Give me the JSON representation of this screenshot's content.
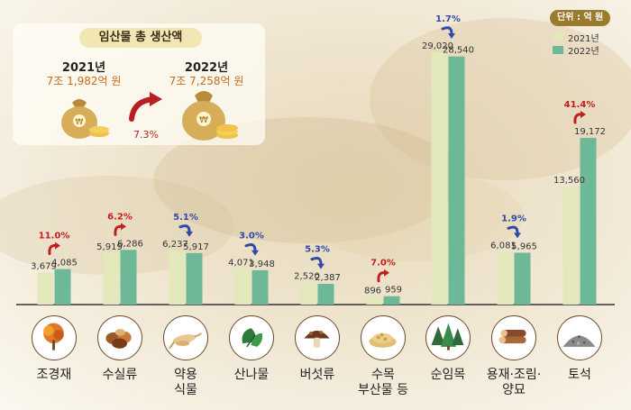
{
  "summary": {
    "title": "임산물 총 생산액",
    "year2021": "2021년",
    "amount2021": "7조 1,982억 원",
    "year2022": "2022년",
    "amount2022": "7조 7,258억 원",
    "growth": "7.3%"
  },
  "unit_label": "단위 : 억 원",
  "colors": {
    "series2021": "#e3e8bb",
    "series2022": "#6cb897",
    "increase": "#c02020",
    "decrease": "#2f4aa8"
  },
  "chart_data": {
    "type": "bar",
    "categories": [
      "조경재",
      "수실류",
      "약용\n식물",
      "산나물",
      "버섯류",
      "수목\n부산물 등",
      "순임목",
      "용재·조림·\n양묘",
      "토석"
    ],
    "category_icons": [
      "autumn-tree-icon",
      "nuts-icon",
      "ginseng-icon",
      "wild-greens-icon",
      "mushroom-icon",
      "sawdust-pellets-icon",
      "conifer-trees-icon",
      "timber-logs-icon",
      "gravel-pile-icon"
    ],
    "series": [
      {
        "name": "2021년",
        "values": [
          3679,
          5919,
          6237,
          4071,
          2520,
          896,
          29020,
          6081,
          13560
        ]
      },
      {
        "name": "2022년",
        "values": [
          4085,
          6286,
          5917,
          3948,
          2387,
          959,
          28540,
          5965,
          19172
        ]
      }
    ],
    "value_labels_2021": [
      "3,679",
      "5,919",
      "6,237",
      "4,071",
      "2,520",
      "896",
      "29,020",
      "6,081",
      "13,560"
    ],
    "value_labels_2022": [
      "4,085",
      "6,286",
      "5,917",
      "3,948",
      "2,387",
      "959",
      "28,540",
      "5,965",
      "19,172"
    ],
    "changes": [
      {
        "label": "11.0%",
        "direction": "up"
      },
      {
        "label": "6.2%",
        "direction": "up"
      },
      {
        "label": "5.1%",
        "direction": "down"
      },
      {
        "label": "3.0%",
        "direction": "down"
      },
      {
        "label": "5.3%",
        "direction": "down"
      },
      {
        "label": "7.0%",
        "direction": "up"
      },
      {
        "label": "1.7%",
        "direction": "down"
      },
      {
        "label": "1.9%",
        "direction": "down"
      },
      {
        "label": "41.4%",
        "direction": "up"
      }
    ],
    "legend_position": "top-right",
    "ylim": [
      0,
      29020
    ],
    "grid": false
  }
}
